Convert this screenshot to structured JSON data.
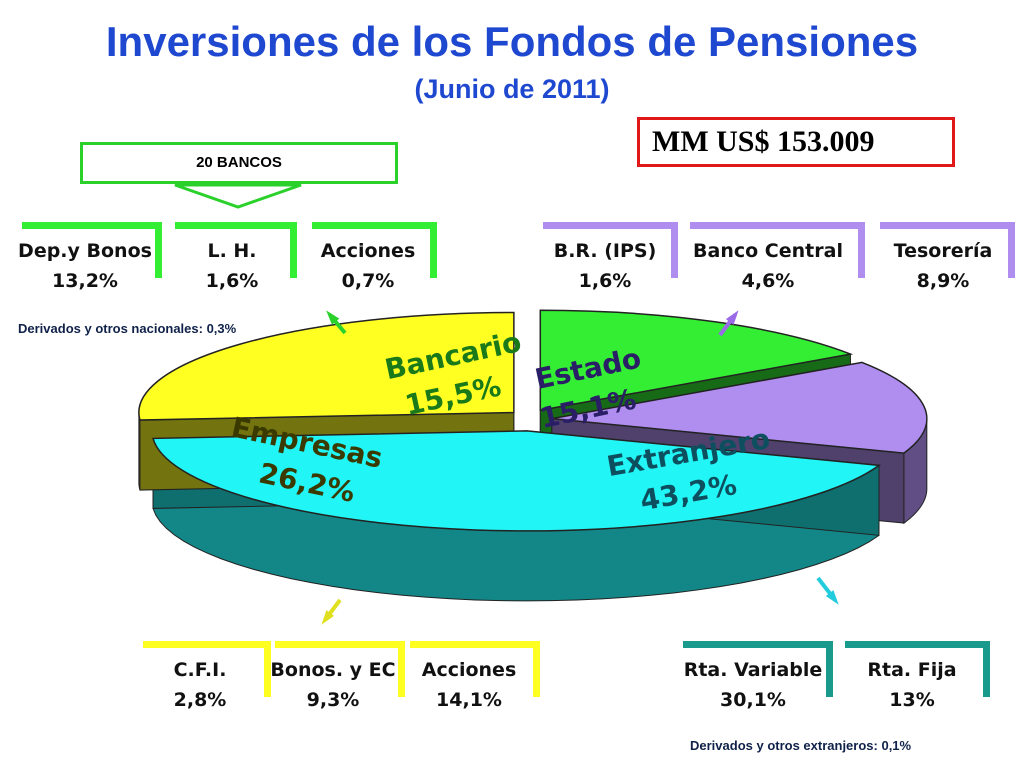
{
  "header": {
    "title": "Inversiones de los Fondos de Pensiones",
    "subtitle": "(Junio de 2011)",
    "total": "MM US$ 153.009",
    "bancos": "20 BANCOS"
  },
  "notes": {
    "nacionales": "Derivados y otros nacionales: 0,3%",
    "extranjeros": "Derivados y otros extranjeros: 0,1%"
  },
  "colors": {
    "bancario": "#33ee33",
    "estado": "#b08ef0",
    "empresas": "#ffff22",
    "extranjero": "#22f5f5",
    "title": "#1f48d0"
  },
  "groups": {
    "bancario": [
      {
        "label": "Dep.y Bonos",
        "pct": "13,2%"
      },
      {
        "label": "L. H.",
        "pct": "1,6%"
      },
      {
        "label": "Acciones",
        "pct": "0,7%"
      }
    ],
    "estado": [
      {
        "label": "B.R. (IPS)",
        "pct": "1,6%"
      },
      {
        "label": "Banco Central",
        "pct": "4,6%"
      },
      {
        "label": "Tesorería",
        "pct": "8,9%"
      }
    ],
    "empresas": [
      {
        "label": "C.F.I.",
        "pct": "2,8%"
      },
      {
        "label": "Bonos. y EC",
        "pct": "9,3%"
      },
      {
        "label": "Acciones",
        "pct": "14,1%"
      }
    ],
    "extranjero": [
      {
        "label": "Rta. Variable",
        "pct": "30,1%"
      },
      {
        "label": "Rta. Fija",
        "pct": "13%"
      }
    ]
  },
  "chart_data": {
    "type": "pie",
    "title": "Inversiones de los Fondos de Pensiones",
    "subtitle": "(Junio de 2011)",
    "categories": [
      "Bancario",
      "Estado",
      "Extranjero",
      "Empresas"
    ],
    "values": [
      15.5,
      15.1,
      43.2,
      26.2
    ],
    "labels": [
      "Bancario",
      "Estado",
      "Extranjero",
      "Empresas"
    ],
    "value_labels": [
      "15,5%",
      "15,1%",
      "43,2%",
      "26,2%"
    ],
    "colors": [
      "#33ee33",
      "#b08ef0",
      "#22f5f5",
      "#ffff22"
    ]
  }
}
